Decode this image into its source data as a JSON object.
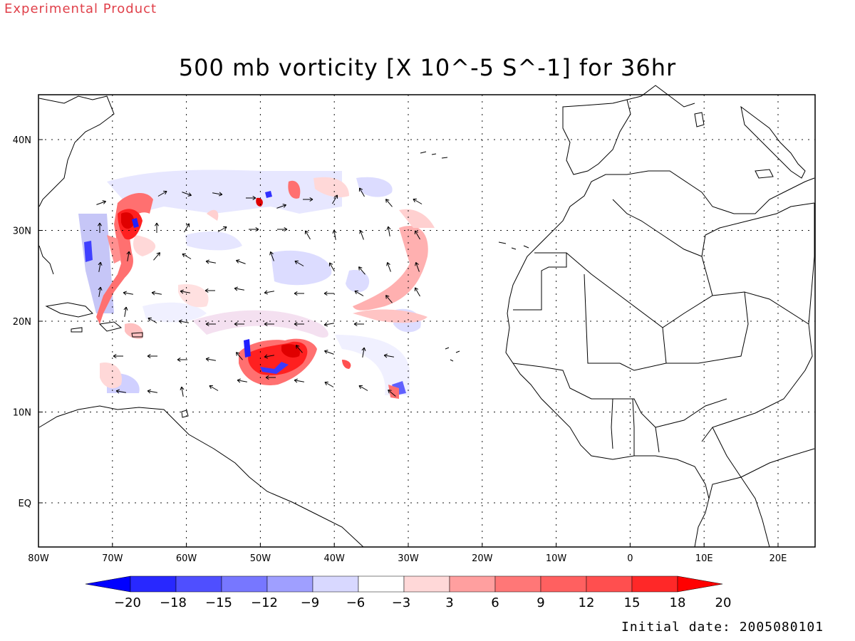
{
  "header": {
    "product_label": "Experimental Product",
    "title": "500 mb vorticity [X 10^-5 S^-1] for 36hr"
  },
  "map": {
    "lon_ticks": [
      "80W",
      "70W",
      "60W",
      "50W",
      "40W",
      "30W",
      "20W",
      "10W",
      "0",
      "10E",
      "20E"
    ],
    "lat_ticks": [
      "40N",
      "30N",
      "20N",
      "10N",
      "EQ"
    ],
    "gridlines": "dotted",
    "region": "Tropical Atlantic and West Africa"
  },
  "colorbar": {
    "labels": [
      "-20",
      "-18",
      "-15",
      "-12",
      "-9",
      "-6",
      "-3",
      "3",
      "6",
      "9",
      "12",
      "15",
      "18",
      "20"
    ],
    "colors": [
      "#0000ff",
      "#2828ff",
      "#4f4fff",
      "#7777ff",
      "#9f9fff",
      "#d8d8ff",
      "#ffffff",
      "#ffd8d8",
      "#ff9f9f",
      "#ff7777",
      "#ff6060",
      "#ff4f4f",
      "#ff2828",
      "#ff0000"
    ]
  },
  "footer": {
    "initial_date": "Initial date: 2005080101"
  },
  "colors": {
    "product_label": "#e0404a",
    "positive": "#ff3030",
    "negative": "#3030ff",
    "coast": "#000000"
  }
}
